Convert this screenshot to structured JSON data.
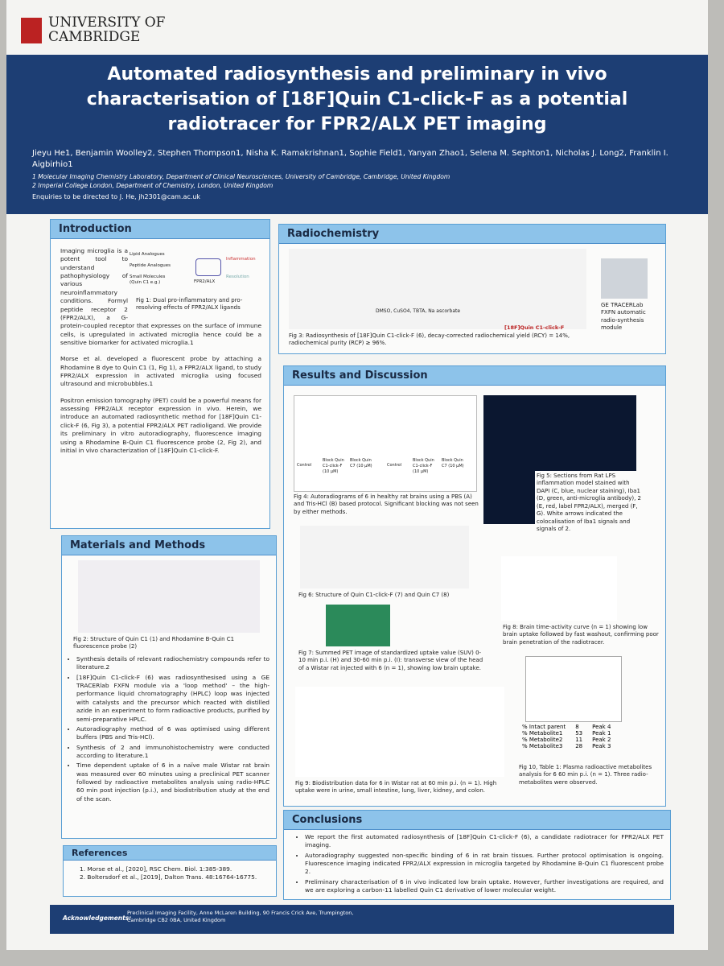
{
  "header": {
    "logo_line1": "UNIVERSITY OF",
    "logo_line2": "CAMBRIDGE",
    "title": "Automated radiosynthesis and preliminary in vivo characterisation of [18F]Quin C1-click-F as a potential radiotracer for FPR2/ALX PET imaging",
    "authors": "Jieyu He1, Benjamin Woolley2, Stephen Thompson1, Nisha K. Ramakrishnan1, Sophie Field1, Yanyan Zhao1, Selena M. Sephton1, Nicholas J. Long2, Franklin I. Aigbirhio1",
    "affiliations": [
      "1 Molecular Imaging Chemistry Laboratory, Department of Clinical Neurosciences, University of Cambridge, Cambridge, United Kingdom",
      "2 Imperial College London, Department of Chemistry, London, United Kingdom"
    ],
    "enquiries": "Enquiries to be directed to J. He, jh2301@cam.ac.uk"
  },
  "introduction": {
    "title": "Introduction",
    "paragraphs": [
      "Imaging microglia is a potent tool to understand pathophysiology of various neuroinflammatory conditions. Formyl peptide receptor 2 (FPR2/ALX), a G-protein-coupled receptor that expresses on the surface of immune cells, is upregulated in activated microglia hence could be a sensitive biomarker for activated microglia.1",
      "Morse et al. developed a fluorescent probe by attaching a Rhodamine B dye to Quin C1 (1, Fig 1), a FPR2/ALX ligand, to study FPR2/ALX expression in activated microglia using focused ultrasound and microbubbles.1",
      "Positron emission tomography (PET) could be a powerful means for assessing FPR2/ALX receptor expression in vivo. Herein, we introduce an automated radiosynthetic method for [18F]Quin C1-click-F (6, Fig 3), a potential FPR2/ALX PET radioligand. We provide its preliminary in vitro autoradiography, fluorescence imaging using a Rhodamine B-Quin C1 fluorescence probe (2, Fig 2), and initial in vivo characterization of [18F]Quin C1-click-F."
    ],
    "fig1_labels": [
      "Lipid Analogues",
      "Peptide Analogues",
      "Small Molecules (Quin C1 e.g.)",
      "FPR2/ALX",
      "Inflammation",
      "Resolution"
    ],
    "fig1_caption": "Fig 1: Dual pro-inflammatory and pro-resolving effects of FPR2/ALX ligands"
  },
  "materials": {
    "title": "Materials and Methods",
    "fig2_caption": "Fig 2: Structure of Quin C1 (1) and Rhodamine B-Quin C1 fluorescence probe (2)",
    "bullets": [
      "Synthesis details of relevant radiochemistry compounds refer to literature.2",
      "[18F]Quin C1-click-F (6) was radiosynthesised using a GE TRACERlab FXFN module via a 'loop method' – the high-performance liquid chromatography (HPLC) loop was injected with catalysts and the precursor which reacted with distilled azide in an experiment to form radioactive products, purified by semi-preparative HPLC.",
      "Autoradiography method of 6 was optimised using different buffers (PBS and Tris-HCl).",
      "Synthesis of 2 and immunohistochemistry were conducted according to literature.1",
      "Time dependent uptake of 6 in a naïve male Wistar rat brain was measured over 60 minutes using a preclinical PET scanner followed by radioactive metabolites analysis using radio-HPLC 60 min post injection (p.i.), and biodistribution study at the end of the scan."
    ]
  },
  "references": {
    "title": "References",
    "items": [
      "1. Morse et al., [2020], RSC Chem. Biol. 1:385-389.",
      "2. Boltersdorf et al., [2019], Dalton Trans. 48:16764-16775."
    ]
  },
  "radiochemistry": {
    "title": "Radiochemistry",
    "reagents": [
      "DMSO, CuSO4, TBTA, Na ascorbate"
    ],
    "product_label": "[18F]Quin C1-click-F",
    "fig3_caption": "Fig 3: Radiosynthesis of [18F]Quin C1-click-F (6), decay-corrected radiochemical yield (RCY) = 14%, radiochemical purity (RCP) ≥ 96%.",
    "module_caption": "GE TRACERLab FXFN automatic radio-synthesis module"
  },
  "results": {
    "title": "Results and Discussion",
    "fig4_labels": [
      "Control",
      "Block Quin C1-click-F (10 µM)",
      "Block Quin C7 (10 µM)",
      "Control",
      "Block Quin C1-click-F (10 µM)",
      "Block Quin C7 (10 µM)"
    ],
    "fig4_caption": "Fig 4: Autoradiograms of 6 in healthy rat brains using a PBS (A) and Tris-HCl (B) based protocol. Significant blocking was not seen by either methods.",
    "fig5_caption": "Fig 5: Sections from Rat LPS inflammation model stained with DAPI (C, blue, nuclear staining), Iba1 (D, green, anti-microglia antibody), 2 (E, red, label FPR2/ALX), merged (F, G). White arrows indicated the colocalisation of Iba1 signals and signals of 2.",
    "fig6_caption": "Fig 6: Structure of Quin C1-click-F (7) and Quin C7 (8)",
    "fig7_caption": "Fig 7: Summed PET image of standardized uptake value (SUV) 0-10 min p.i. (H) and 30-60 min p.i. (I): transverse view of the head of a Wistar rat injected with 6 (n = 1), showing low brain uptake.",
    "fig8_caption": "Fig 8: Brain time-activity curve (n = 1) showing low brain uptake followed by fast washout, confirming poor brain penetration of the radiotracer.",
    "fig9_caption": "Fig 9: Biodistribution data for 6 in Wistar rat at 60 min p.i. (n = 1). High uptake were in urine, small intestine, lung, liver, kidney, and colon.",
    "table": [
      [
        "% Intact parent",
        "8",
        "Peak 4"
      ],
      [
        "% Metabolite1",
        "53",
        "Peak 1"
      ],
      [
        "% Metabolite2",
        "11",
        "Peak 2"
      ],
      [
        "% Metabolite3",
        "28",
        "Peak 3"
      ]
    ],
    "fig10_caption": "Fig 10, Table 1: Plasma radioactive metabolites analysis for 6 60 min p.i. (n = 1). Three radio-metabolites were observed."
  },
  "conclusions": {
    "title": "Conclusions",
    "bullets": [
      "We report the first automated radiosynthesis of [18F]Quin C1-click-F (6), a candidate radiotracer for FPR2/ALX PET imaging.",
      "Autoradiography suggested non-specific binding of 6 in rat brain tissues. Further protocol optimisation is ongoing. Fluorescence imaging indicated FPR2/ALX expression in microglia targeted by Rhodamine B-Quin C1 fluorescent probe 2.",
      "Preliminary characterisation of 6 in vivo indicated low brain uptake. However, further investigations are required, and we are exploring a carbon-11 labelled Quin C1 derivative of lower molecular weight."
    ]
  },
  "footer": {
    "label": "Acknowledgements:",
    "text": "Preclinical Imaging Facility, Anne McLaren Building, 90 Francis Crick Ave, Trumpington, Cambridge CB2 0BA, United Kingdom"
  }
}
